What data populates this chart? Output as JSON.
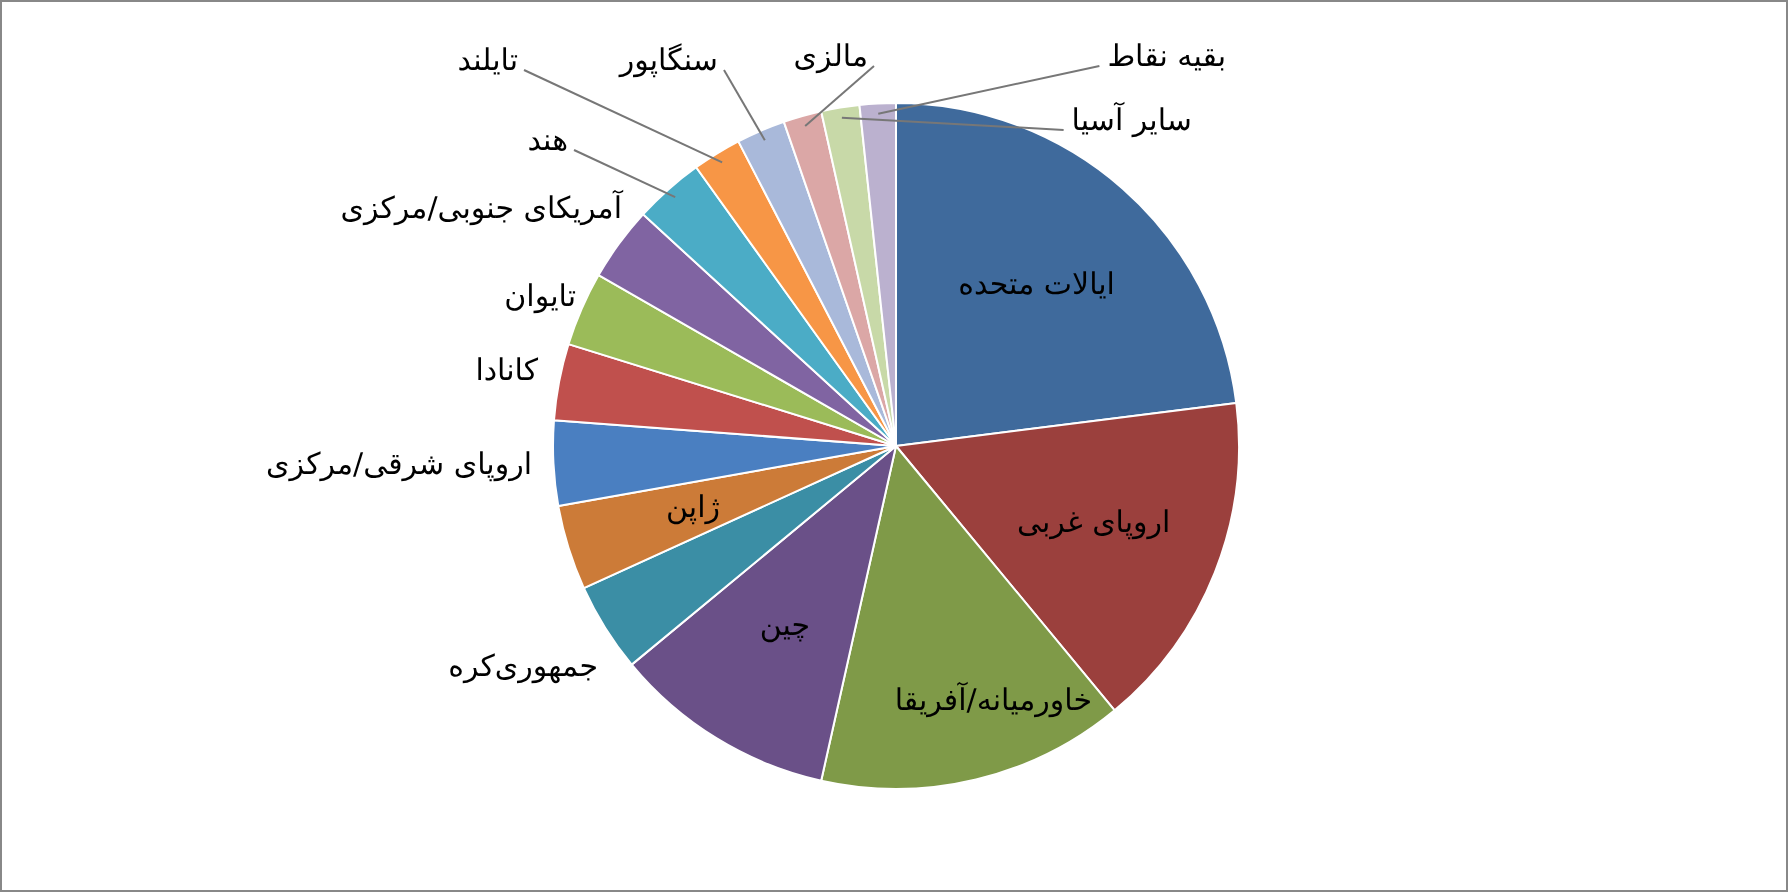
{
  "chart_data": {
    "type": "pie",
    "categories": [
      "ایالات متحده",
      "اروپای غربی",
      "خاورمیانه/آفریقا",
      "چین",
      "جمهوری‌کره",
      "ژاپن",
      "اروپای شرقی/مرکزی",
      "کانادا",
      "تایوان",
      "آمریکای جنوبی/مرکزی",
      "هند",
      "تایلند",
      "سنگاپور",
      "مالزی",
      "سایر آسیا",
      "بقیه نقاط"
    ],
    "values": [
      23,
      16,
      14.5,
      10.5,
      4.2,
      4,
      4,
      3.6,
      3.5,
      3.5,
      3.3,
      2.3,
      2.3,
      1.8,
      1.8,
      1.7
    ],
    "colors": [
      "#3f6a9c",
      "#9b403d",
      "#7f9a48",
      "#6a5088",
      "#3b8ea5",
      "#cc7b38",
      "#4a7fc1",
      "#c0504d",
      "#9bbb59",
      "#8064a2",
      "#4bacc6",
      "#f79646",
      "#a9b9da",
      "#dba7a6",
      "#c8d9a8",
      "#bbb1cf"
    ]
  }
}
